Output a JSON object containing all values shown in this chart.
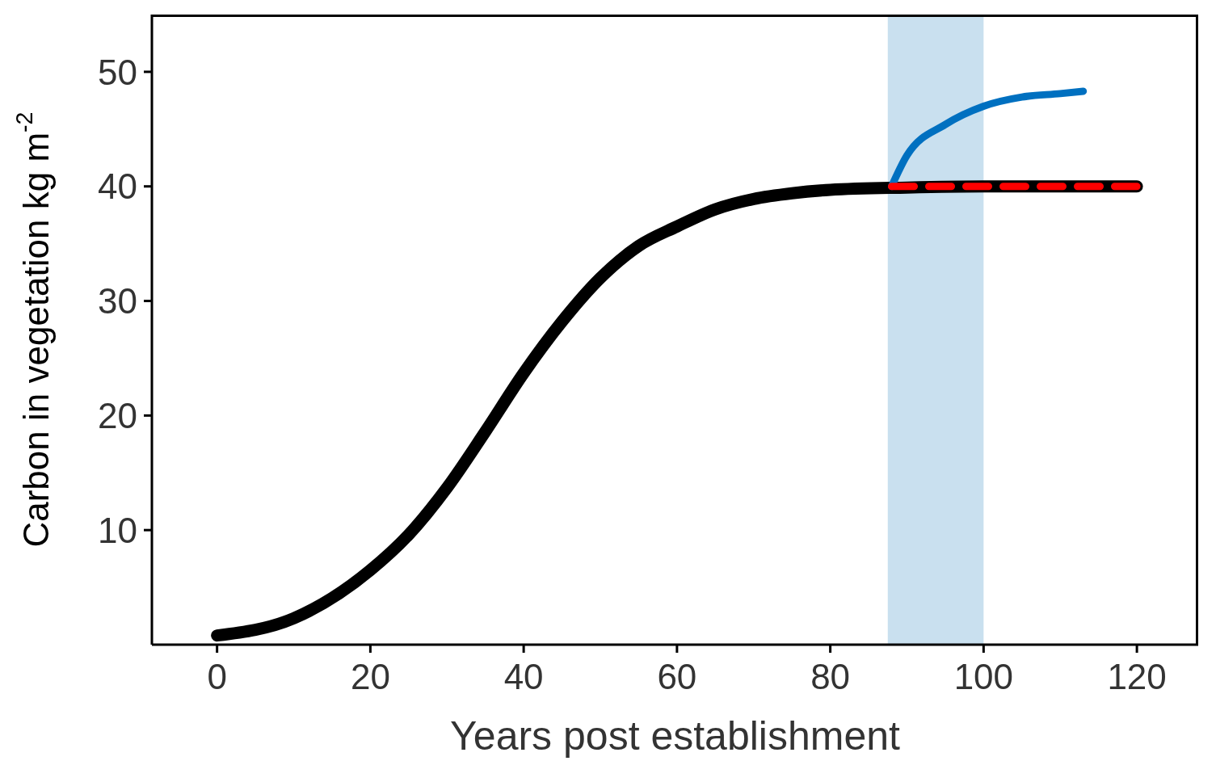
{
  "chart_data": {
    "type": "line",
    "xlabel": "Years post establishment",
    "ylabel": "Carbon in vegetation kg m$^{-2}$",
    "xlim": [
      -8.5,
      128
    ],
    "ylim": [
      0,
      55
    ],
    "xticks": [
      0,
      20,
      40,
      60,
      80,
      100,
      120
    ],
    "yticks": [
      10,
      20,
      30,
      40,
      50
    ],
    "grid": false,
    "legend": false,
    "marker": "none",
    "bands": [
      {
        "axis": "x",
        "from": 87.5,
        "to": 100,
        "color": "#c9e0ef"
      }
    ],
    "series": [
      {
        "color": "#000000",
        "line_style": "solid",
        "x": [
          0,
          10,
          20,
          25,
          30,
          35,
          40,
          45,
          50,
          55,
          60,
          65,
          70,
          75,
          80,
          90,
          100,
          110,
          120
        ],
        "values": [
          0.8,
          2.3,
          6.5,
          9.6,
          13.7,
          18.6,
          23.7,
          28.2,
          32,
          34.8,
          36.5,
          38,
          38.9,
          39.4,
          39.7,
          39.9,
          40,
          40,
          40
        ]
      },
      {
        "color": "#0070c0",
        "line_style": "solid",
        "x": [
          88,
          90,
          95,
          100,
          105,
          110,
          113
        ],
        "values": [
          40,
          42.7,
          45.4,
          47,
          47.8,
          48.1,
          48.3
        ]
      },
      {
        "color": "#ff0000",
        "line_style": "dashed",
        "x": [
          88,
          120
        ],
        "values": [
          40,
          40
        ]
      }
    ]
  }
}
